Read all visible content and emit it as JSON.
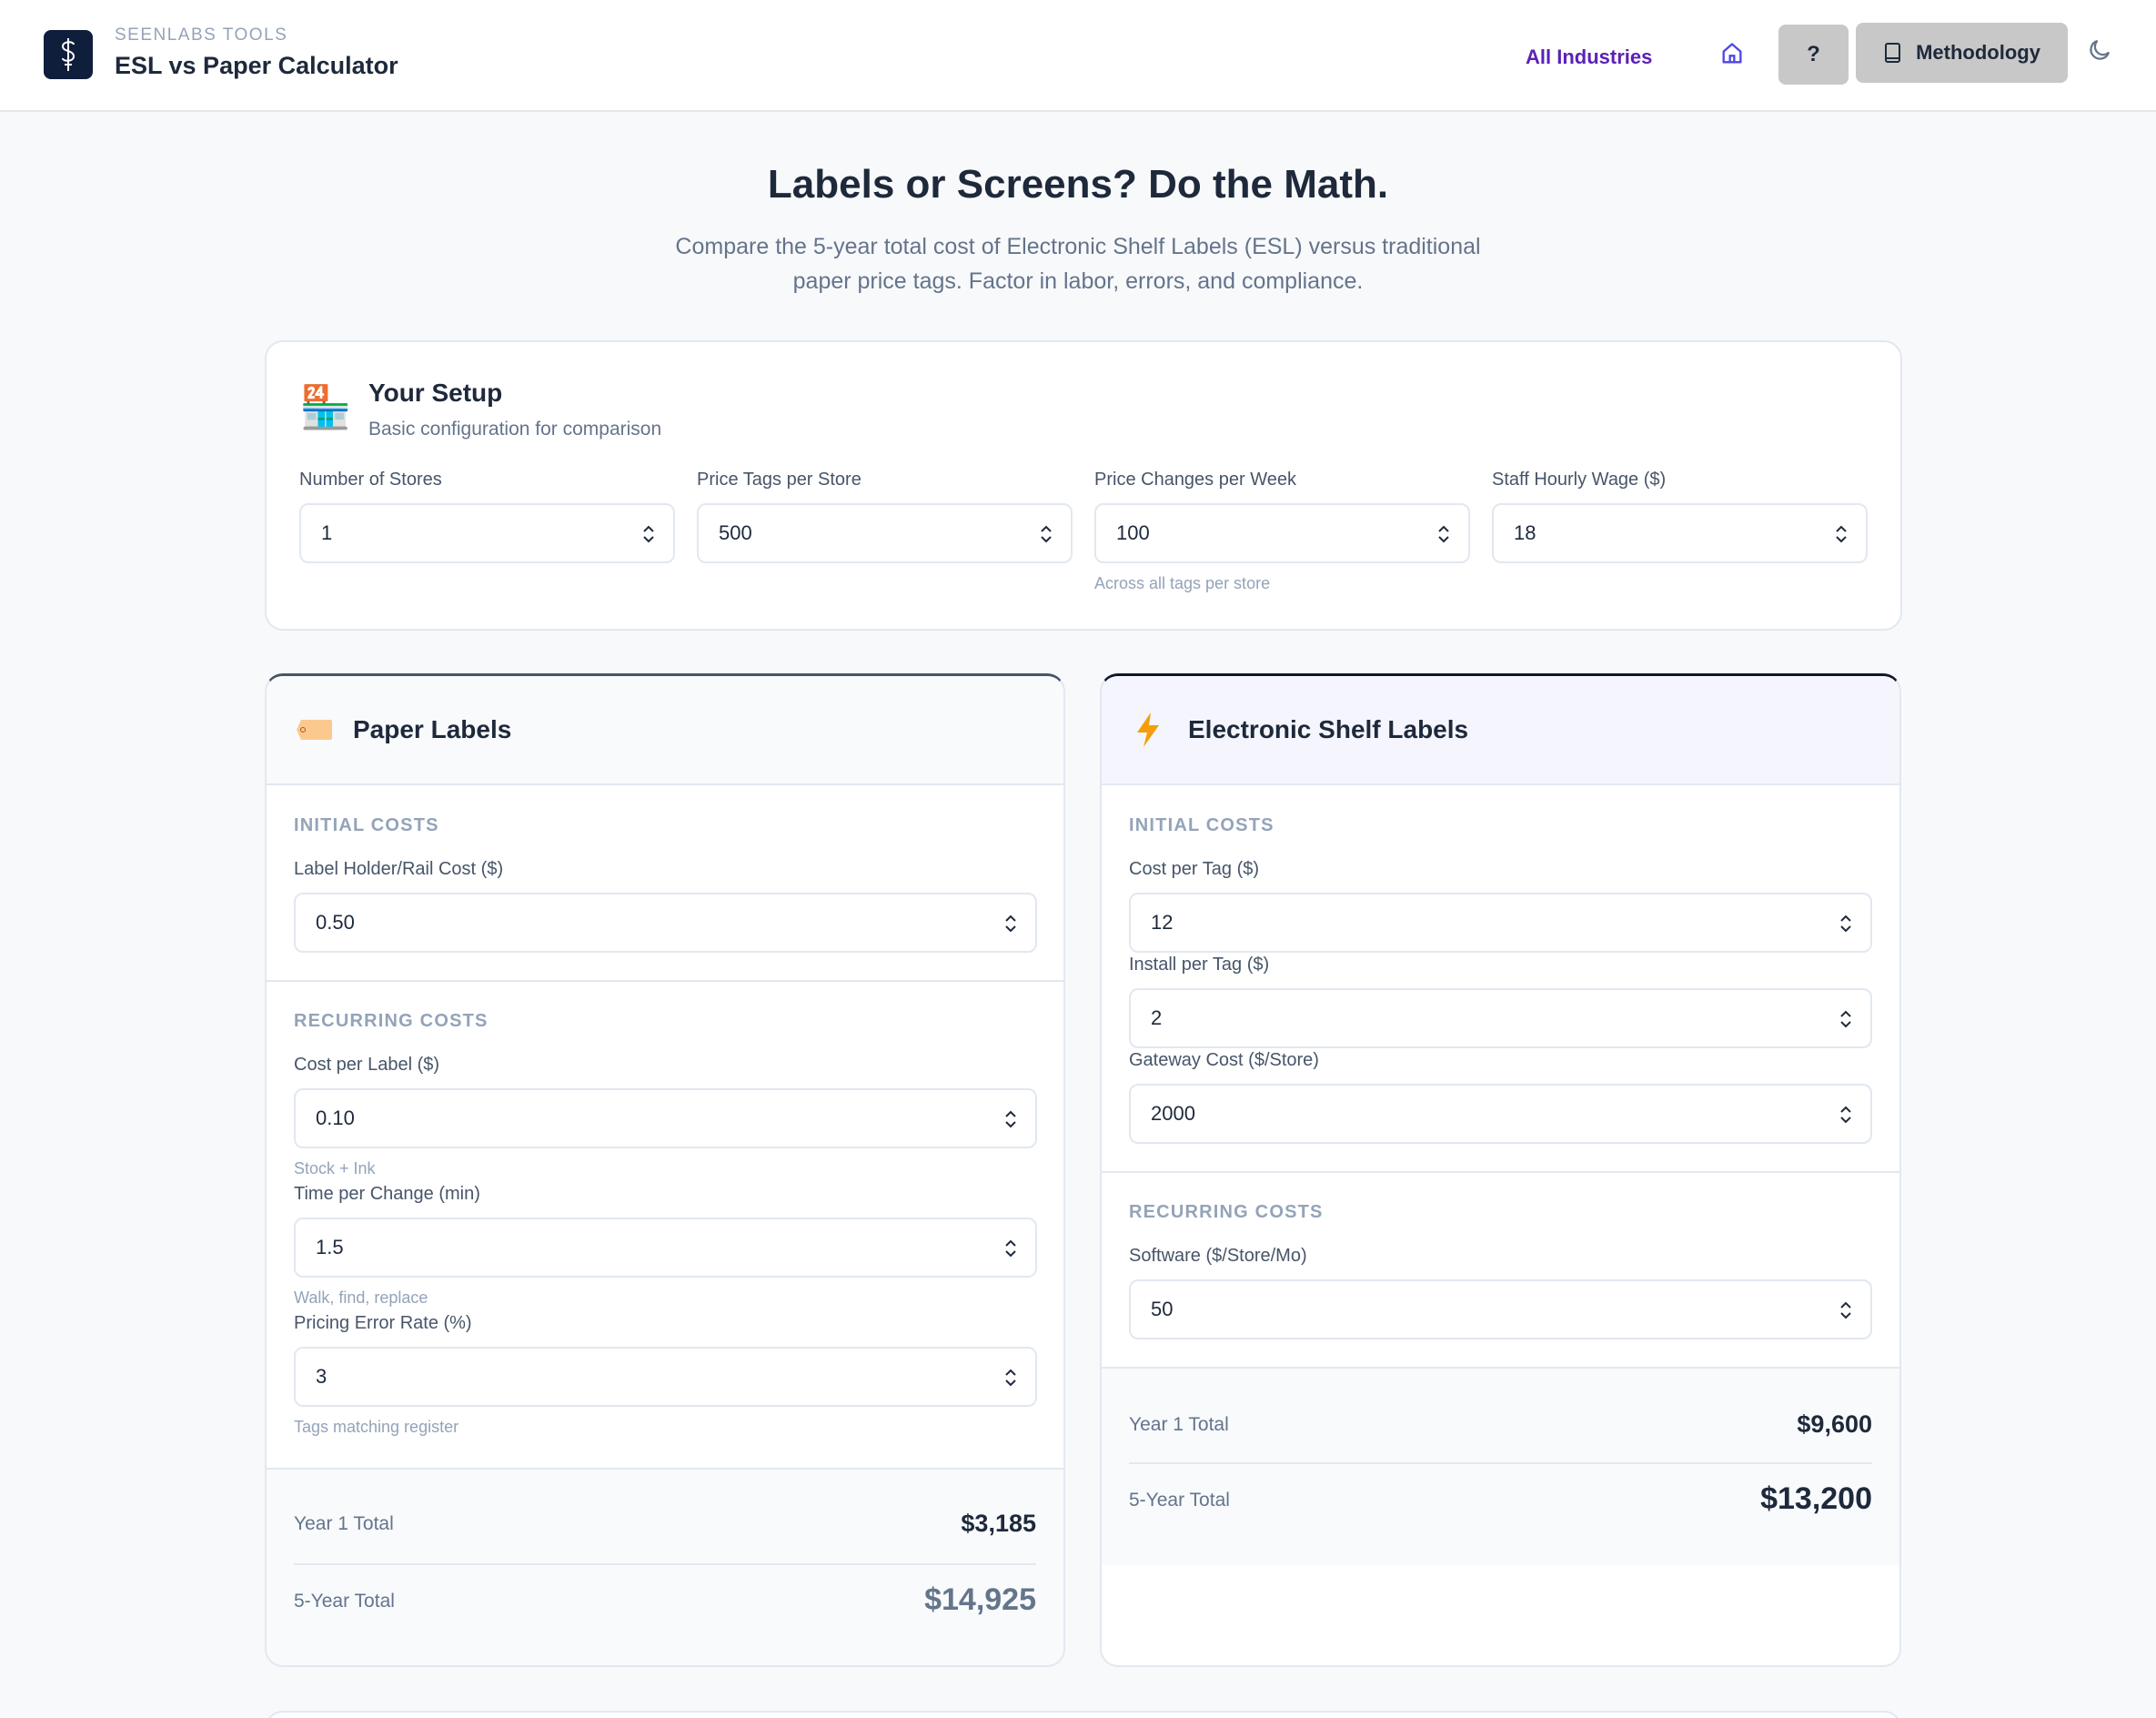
{
  "header": {
    "brand_small": "SEENLABS TOOLS",
    "brand_title": "ESL vs Paper Calculator",
    "nav_link": "All Industries",
    "help_label": "?",
    "methodology_label": "Methodology"
  },
  "hero": {
    "title": "Labels or Screens? Do the Math.",
    "subtitle": "Compare the 5-year total cost of Electronic Shelf Labels (ESL) versus traditional paper price tags. Factor in labor, errors, and compliance."
  },
  "setup": {
    "title": "Your Setup",
    "subtitle": "Basic configuration for comparison",
    "fields": [
      {
        "label": "Number of Stores",
        "value": "1"
      },
      {
        "label": "Price Tags per Store",
        "value": "500"
      },
      {
        "label": "Price Changes per Week",
        "value": "100",
        "hint": "Across all tags per store"
      },
      {
        "label": "Staff Hourly Wage ($)",
        "value": "18"
      }
    ]
  },
  "paper": {
    "title": "Paper Labels",
    "initial_caption": "INITIAL COSTS",
    "initial_fields": [
      {
        "label": "Label Holder/Rail Cost ($)",
        "value": "0.50"
      }
    ],
    "recurring_caption": "RECURRING COSTS",
    "recurring_fields": [
      {
        "label": "Cost per Label ($)",
        "value": "0.10",
        "hint": "Stock + Ink"
      },
      {
        "label": "Time per Change (min)",
        "value": "1.5",
        "hint": "Walk, find, replace"
      },
      {
        "label": "Pricing Error Rate (%)",
        "value": "3",
        "hint": "Tags matching register"
      }
    ],
    "year1_label": "Year 1 Total",
    "year1_value": "$3,185",
    "year5_label": "5-Year Total",
    "year5_value": "$14,925"
  },
  "esl": {
    "title": "Electronic Shelf Labels",
    "initial_caption": "INITIAL COSTS",
    "initial_fields": [
      {
        "label": "Cost per Tag ($)",
        "value": "12"
      },
      {
        "label": "Install per Tag ($)",
        "value": "2"
      },
      {
        "label": "Gateway Cost ($/Store)",
        "value": "2000"
      }
    ],
    "recurring_caption": "RECURRING COSTS",
    "recurring_fields": [
      {
        "label": "Software ($/Store/Mo)",
        "value": "50"
      }
    ],
    "year1_label": "Year 1 Total",
    "year1_value": "$9,600",
    "year5_label": "5-Year Total",
    "year5_value": "$13,200"
  },
  "icons": {
    "logo": "dollar-caduceus-icon",
    "home": "home-icon",
    "methodology": "book-icon",
    "theme": "moon-icon",
    "setup": "store-24h-icon",
    "paper": "tag-icon",
    "esl": "lightning-icon"
  },
  "colors": {
    "nav_link": "#5b21b6",
    "logo_bg": "#0f1e3a",
    "button_bg": "#c8c8c8",
    "lightning": "#f59e0b"
  }
}
